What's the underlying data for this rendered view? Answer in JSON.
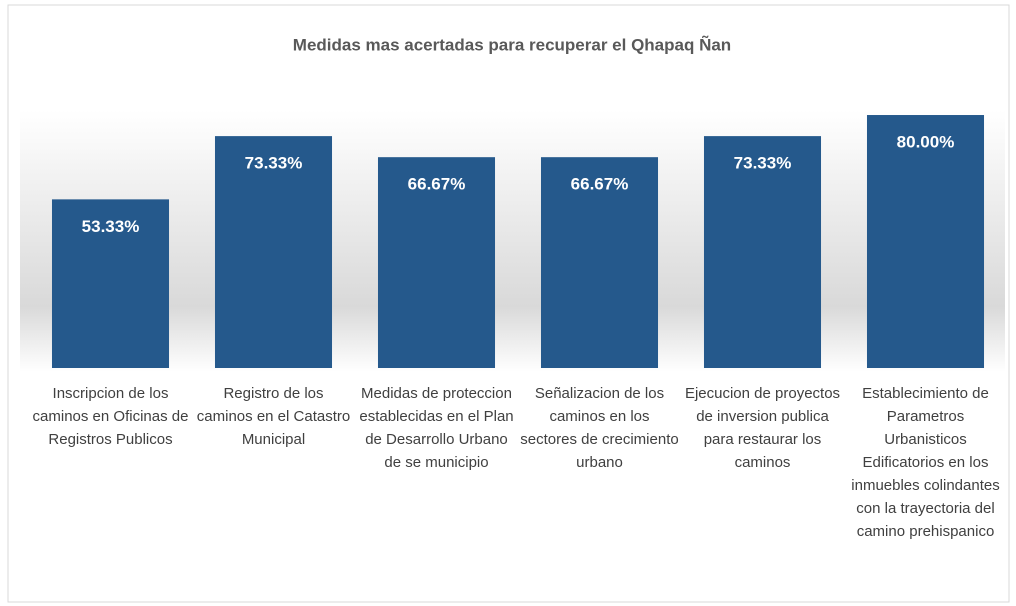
{
  "chart_data": {
    "type": "bar",
    "title": "Medidas mas acertadas para recuperar el Qhapaq Ñan",
    "categories": [
      "Inscripcion de los caminos en Oficinas de Registros Publicos",
      "Registro de los caminos en el Catastro Municipal",
      "Medidas de proteccion establecidas en el Plan de Desarrollo Urbano de se municipio",
      "Señalizacion de los caminos en los sectores de crecimiento urbano",
      "Ejecucion de proyectos de inversion publica para restaurar los caminos",
      "Establecimiento de Parametros Urbanisticos Edificatorios en los inmuebles colindantes con la trayectoria del camino prehispanico"
    ],
    "values": [
      53.33,
      73.33,
      66.67,
      66.67,
      73.33,
      80.0
    ],
    "value_labels": [
      "53.33%",
      "73.33%",
      "66.67%",
      "66.67%",
      "73.33%",
      "80.00%"
    ],
    "color": "#25598c",
    "ylim": [
      0,
      90
    ]
  }
}
